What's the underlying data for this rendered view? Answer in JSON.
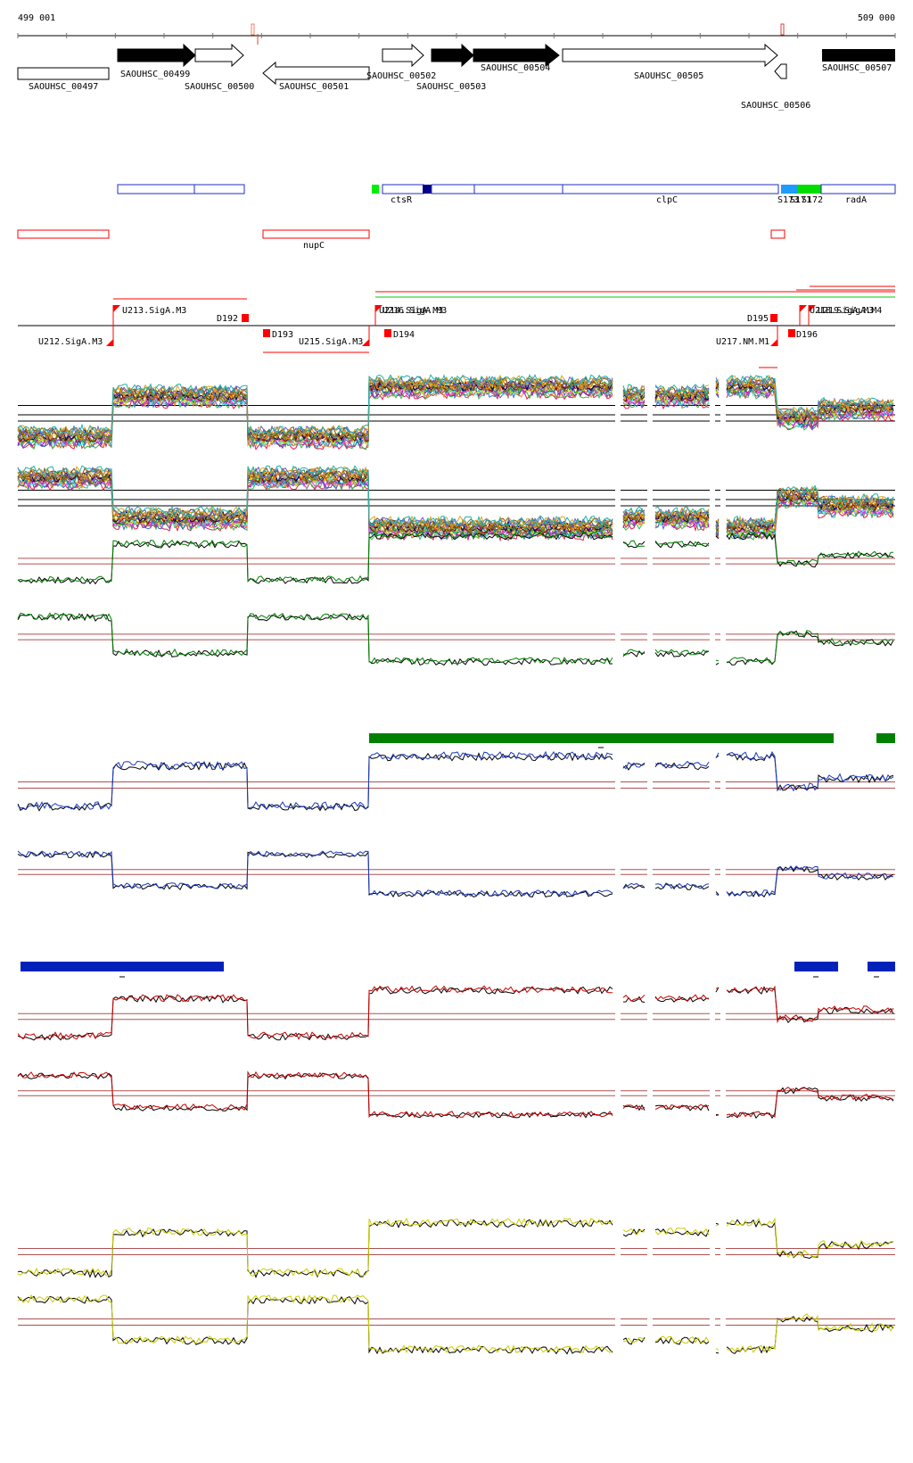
{
  "ruler": {
    "start_label": "499 001",
    "end_label": "509 000"
  },
  "colors": {
    "gene_black": "#000000",
    "annotation_blue": "#1f2fc6",
    "operon_red": "#ff0000",
    "green_bar": "#008000",
    "blue_bar": "#0022bb",
    "green_trace": "#008000",
    "blue_trace": "#1a3ac0",
    "red_trace": "#cc0000",
    "yellow_trace": "#cccc00"
  },
  "genes": [
    {
      "label": "SAOUHSC_00497",
      "strand": "-",
      "filled": false
    },
    {
      "label": "SAOUHSC_00499",
      "strand": "+",
      "filled": true
    },
    {
      "label": "SAOUHSC_00500",
      "strand": "+",
      "filled": false
    },
    {
      "label": "SAOUHSC_00501",
      "strand": "-",
      "filled": false
    },
    {
      "label": "SAOUHSC_00502",
      "strand": "+",
      "filled": false
    },
    {
      "label": "SAOUHSC_00503",
      "strand": "+",
      "filled": true
    },
    {
      "label": "SAOUHSC_00504",
      "strand": "+",
      "filled": true
    },
    {
      "label": "SAOUHSC_00505",
      "strand": "+",
      "filled": false
    },
    {
      "label": "SAOUHSC_00506",
      "strand": "-",
      "filled": false
    },
    {
      "label": "SAOUHSC_00507",
      "strand": "+",
      "filled": true
    }
  ],
  "annotations": [
    {
      "label": "ctsR"
    },
    {
      "label": "clpC"
    },
    {
      "label": "S173"
    },
    {
      "label": "S171"
    },
    {
      "label": "S172"
    },
    {
      "label": "radA"
    },
    {
      "label": "nupC"
    }
  ],
  "transcripts": [
    {
      "label": "U213.SigA.M3"
    },
    {
      "label": "U212.SigA.M3"
    },
    {
      "label": "D192"
    },
    {
      "label": "D193"
    },
    {
      "label": "U215.SigA.M3"
    },
    {
      "label": "U214.SigA.M3"
    },
    {
      "label": "U216.SigA.M3"
    },
    {
      "label": "D194"
    },
    {
      "label": "D195"
    },
    {
      "label": "U217.NM.M1"
    },
    {
      "label": "D196"
    },
    {
      "label": "U218.SigA.M3"
    },
    {
      "label": "U219.SigA.M4"
    }
  ],
  "chart_data": {
    "type": "line",
    "x_range": [
      499001,
      509000
    ],
    "profile_levels": [
      "low",
      "high",
      "low",
      "very-high",
      "high",
      "very-high",
      "mid",
      "mid-high"
    ],
    "track_colors": [
      "multicolor",
      "multicolor",
      "#008000",
      "#008000",
      "#1a3ac0",
      "#1a3ac0",
      "#cc0000",
      "#cc0000",
      "#cccc00",
      "#cccc00"
    ]
  }
}
